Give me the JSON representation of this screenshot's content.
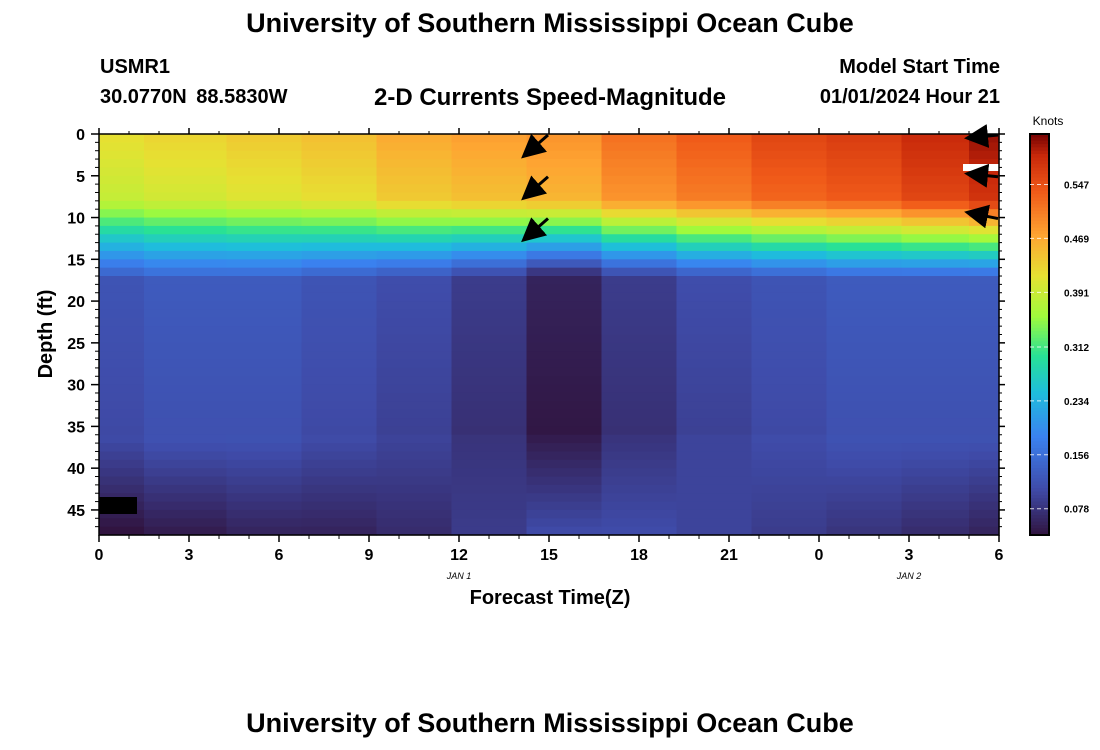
{
  "header": {
    "title": "University of Southern Mississippi Ocean Cube",
    "station_id": "USMR1",
    "coordinates": "30.0770N  88.5830W",
    "subtitle": "2-D Currents Speed-Magnitude",
    "model_start_label": "Model Start Time",
    "model_start_value": "01/01/2024 Hour 21"
  },
  "footer": {
    "title": "University of Southern Mississippi Ocean Cube"
  },
  "chart_data": {
    "type": "heatmap",
    "title": "2-D Currents Speed-Magnitude",
    "xlabel": "Forecast Time(Z)",
    "ylabel": "Depth (ft)",
    "xlim": [
      0,
      30
    ],
    "ylim": [
      0,
      48
    ],
    "x_tick_labels": [
      "0",
      "3",
      "6",
      "9",
      "12",
      "15",
      "18",
      "21",
      "0",
      "3",
      "6"
    ],
    "y_tick_labels": [
      "0",
      "5",
      "10",
      "15",
      "20",
      "25",
      "30",
      "35",
      "40",
      "45"
    ],
    "date_labels": [
      {
        "text": "JAN 1",
        "x_hour": 12
      },
      {
        "text": "JAN 2",
        "x_hour": 27
      }
    ],
    "colorbar": {
      "title": "Knots",
      "min": 0.04,
      "max": 0.62,
      "ticks": [
        "0.078",
        "0.156",
        "0.234",
        "0.312",
        "0.391",
        "0.469",
        "0.547"
      ]
    },
    "columns_hours": [
      0,
      3,
      5.5,
      8,
      10.5,
      13,
      15.5,
      18,
      20.5,
      23,
      25.5,
      28,
      30
    ],
    "column_profiles": [
      {
        "surface": 0.42,
        "deep": 0.11,
        "bottom": 0.04
      },
      {
        "surface": 0.43,
        "deep": 0.12,
        "bottom": 0.05
      },
      {
        "surface": 0.44,
        "deep": 0.12,
        "bottom": 0.06
      },
      {
        "surface": 0.45,
        "deep": 0.11,
        "bottom": 0.06
      },
      {
        "surface": 0.47,
        "deep": 0.1,
        "bottom": 0.07
      },
      {
        "surface": 0.48,
        "deep": 0.08,
        "bottom": 0.09
      },
      {
        "surface": 0.49,
        "deep": 0.05,
        "bottom": 0.11
      },
      {
        "surface": 0.52,
        "deep": 0.08,
        "bottom": 0.11
      },
      {
        "surface": 0.54,
        "deep": 0.1,
        "bottom": 0.1
      },
      {
        "surface": 0.56,
        "deep": 0.11,
        "bottom": 0.09
      },
      {
        "surface": 0.57,
        "deep": 0.12,
        "bottom": 0.08
      },
      {
        "surface": 0.59,
        "deep": 0.12,
        "bottom": 0.07
      },
      {
        "surface": 0.61,
        "deep": 0.12,
        "bottom": 0.06
      }
    ],
    "vectors": [
      {
        "hour": 15,
        "depth_ft": 0,
        "dx": -0.8,
        "dy": 0.7
      },
      {
        "hour": 15,
        "depth_ft": 5,
        "dx": -0.8,
        "dy": 0.7
      },
      {
        "hour": 15,
        "depth_ft": 10,
        "dx": -0.8,
        "dy": 0.7
      },
      {
        "hour": 30,
        "depth_ft": 0,
        "dx": -1.0,
        "dy": 0.1
      },
      {
        "hour": 30,
        "depth_ft": 5,
        "dx": -1.0,
        "dy": -0.1
      },
      {
        "hour": 30,
        "depth_ft": 10,
        "dx": -1.0,
        "dy": -0.2
      }
    ]
  }
}
